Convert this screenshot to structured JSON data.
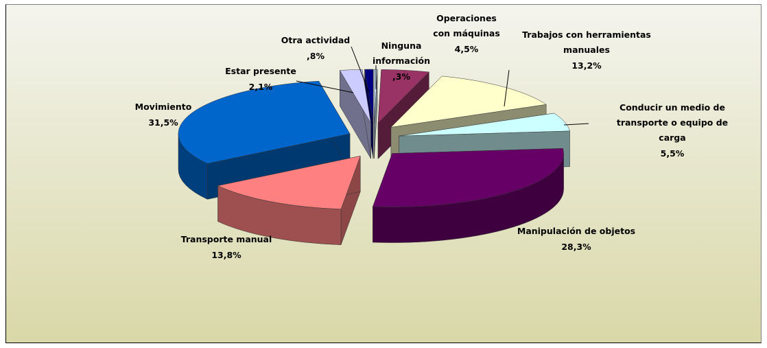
{
  "chart_data": {
    "type": "pie3d",
    "categories": [
      "Ninguna información",
      "Operaciones con máquinas",
      "Trabajos con herramientas manuales",
      "Conducir un medio de transporte o equipo de carga",
      "Manipulación de objetos",
      "Transporte manual",
      "Movimiento",
      "Estar presente",
      "Otra actividad"
    ],
    "values": [
      0.3,
      4.5,
      13.2,
      5.5,
      28.3,
      13.8,
      31.5,
      2.1,
      0.8
    ],
    "value_labels": [
      ",3%",
      "4,5%",
      "13,2%",
      "5,5%",
      "28,3%",
      "13,8%",
      "31,5%",
      "2,1%",
      ",8%"
    ],
    "colors": [
      "#cce6ff",
      "#993366",
      "#ffffcc",
      "#ccffff",
      "#660066",
      "#ff8080",
      "#0066cc",
      "#ccccff",
      "#000080"
    ]
  }
}
